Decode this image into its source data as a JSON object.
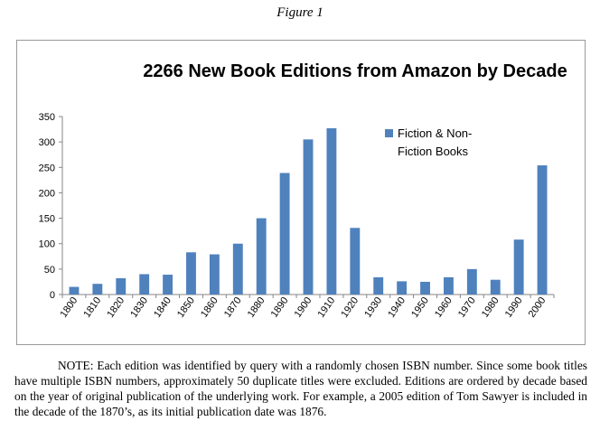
{
  "figure_caption": "Figure 1",
  "note": "NOTE:  Each edition was identified by query with a randomly chosen ISBN number.  Since some book titles have multiple ISBN numbers, approximately 50 duplicate titles were excluded.  Editions are ordered by decade based on the year of original publication of the underlying work.  For example, a 2005 edition of Tom Sawyer is included in the decade of the 1870’s, as its initial publication date was 1876.",
  "chart_data": {
    "type": "bar",
    "title": "2266 New Book Editions from Amazon by Decade",
    "xlabel": "",
    "ylabel": "",
    "categories": [
      "1800",
      "1810",
      "1820",
      "1830",
      "1840",
      "1850",
      "1860",
      "1870",
      "1880",
      "1890",
      "1900",
      "1910",
      "1920",
      "1930",
      "1940",
      "1950",
      "1960",
      "1970",
      "1980",
      "1990",
      "2000"
    ],
    "series": [
      {
        "name": "Fiction & Non-Fiction Books",
        "legend_lines": [
          "Fiction & Non-",
          "Fiction Books"
        ],
        "color": "#4f81bd",
        "values": [
          15,
          21,
          32,
          40,
          39,
          83,
          79,
          100,
          150,
          239,
          305,
          327,
          131,
          34,
          26,
          25,
          34,
          50,
          29,
          108,
          254
        ]
      }
    ],
    "ylim": [
      0,
      350
    ],
    "yticks": [
      0,
      50,
      100,
      150,
      200,
      250,
      300,
      350
    ],
    "grid": false,
    "legend_position": "top-right"
  }
}
